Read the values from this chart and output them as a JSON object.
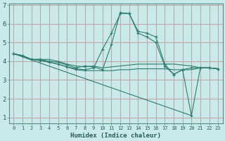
{
  "xlabel": "Humidex (Indice chaleur)",
  "background_color": "#c8eaea",
  "grid_color": "#c0a8a8",
  "line_color": "#2e7d6e",
  "xlim": [
    -0.5,
    23.5
  ],
  "ylim": [
    0.7,
    7.1
  ],
  "xticks": [
    0,
    1,
    2,
    3,
    4,
    5,
    6,
    7,
    8,
    9,
    10,
    11,
    12,
    13,
    14,
    15,
    16,
    17,
    18,
    19,
    20,
    21,
    22,
    23
  ],
  "yticks": [
    1,
    2,
    3,
    4,
    5,
    6,
    7
  ],
  "lines": [
    {
      "x": [
        0,
        1,
        2,
        3,
        4,
        5,
        6,
        7,
        8,
        9,
        10,
        11,
        12,
        13,
        14,
        15,
        16,
        17,
        18,
        19,
        20,
        21,
        22,
        23
      ],
      "y": [
        4.4,
        4.3,
        4.1,
        4.1,
        4.0,
        3.95,
        3.8,
        3.65,
        3.75,
        3.7,
        3.55,
        4.9,
        6.6,
        6.55,
        5.6,
        5.5,
        5.3,
        3.85,
        3.3,
        3.55,
        3.65,
        3.65,
        3.65,
        3.6
      ],
      "has_markers": true
    },
    {
      "x": [
        0,
        1,
        2,
        3,
        4,
        5,
        6,
        7,
        8,
        9,
        10,
        11,
        12,
        13,
        14,
        15,
        16,
        17,
        18,
        19,
        20,
        21,
        22,
        23
      ],
      "y": [
        4.4,
        4.3,
        4.1,
        4.1,
        4.1,
        4.0,
        3.85,
        3.75,
        3.7,
        3.75,
        3.65,
        3.7,
        3.75,
        3.8,
        3.85,
        3.85,
        3.85,
        3.85,
        3.85,
        3.8,
        3.75,
        3.65,
        3.65,
        3.6
      ],
      "has_markers": false
    },
    {
      "x": [
        0,
        1,
        2,
        3,
        4,
        5,
        6,
        7,
        8,
        9,
        10,
        11,
        12,
        13,
        14,
        15,
        16,
        17,
        18,
        19,
        20,
        21,
        22,
        23
      ],
      "y": [
        4.4,
        4.3,
        4.1,
        4.05,
        3.95,
        3.85,
        3.7,
        3.55,
        3.5,
        3.5,
        3.5,
        3.5,
        3.55,
        3.55,
        3.6,
        3.6,
        3.6,
        3.6,
        3.55,
        3.55,
        3.55,
        3.65,
        3.65,
        3.6
      ],
      "has_markers": false
    },
    {
      "x": [
        0,
        1,
        2,
        3,
        4,
        5,
        6,
        7,
        8,
        9,
        10,
        11,
        12,
        13,
        14,
        15,
        16,
        17,
        18,
        19,
        20,
        21,
        22,
        23
      ],
      "y": [
        4.4,
        4.3,
        4.1,
        4.05,
        3.95,
        3.85,
        3.7,
        3.6,
        3.55,
        3.65,
        4.65,
        5.5,
        6.55,
        6.55,
        5.5,
        5.3,
        5.0,
        3.75,
        3.3,
        3.55,
        1.1,
        3.65,
        3.65,
        3.6
      ],
      "has_markers": true
    },
    {
      "x": [
        0,
        20
      ],
      "y": [
        4.4,
        1.1
      ],
      "has_markers": false
    }
  ]
}
